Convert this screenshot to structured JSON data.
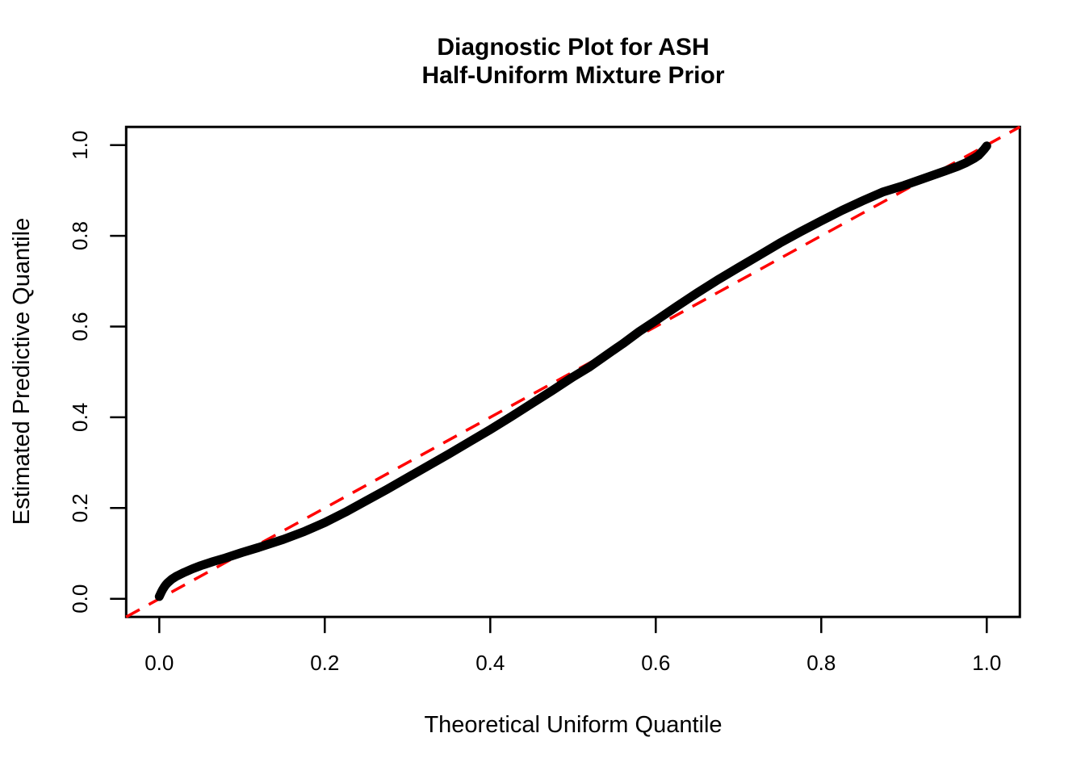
{
  "title": {
    "line1": "Diagnostic Plot for ASH",
    "line2": "Half-Uniform Mixture Prior"
  },
  "axes": {
    "x": {
      "label": "Theoretical Uniform Quantile",
      "tick_values": [
        0.0,
        0.2,
        0.4,
        0.6,
        0.8,
        1.0
      ],
      "tick_labels": [
        "0.0",
        "0.2",
        "0.4",
        "0.6",
        "0.8",
        "1.0"
      ],
      "range": [
        -0.04,
        1.04
      ]
    },
    "y": {
      "label": "Estimated Predictive Quantile",
      "tick_values": [
        0.0,
        0.2,
        0.4,
        0.6,
        0.8,
        1.0
      ],
      "tick_labels": [
        "0.0",
        "0.2",
        "0.4",
        "0.6",
        "0.8",
        "1.0"
      ],
      "range": [
        -0.04,
        1.04
      ]
    }
  },
  "colors": {
    "background": "#FFFFFF",
    "axis": "#000000",
    "curve": "#000000",
    "reference_line": "#FF0000"
  },
  "chart_data": {
    "type": "line",
    "title": "Diagnostic Plot for ASH\nHalf-Uniform Mixture Prior",
    "xlabel": "Theoretical Uniform Quantile",
    "ylabel": "Estimated Predictive Quantile",
    "xlim": [
      -0.04,
      1.04
    ],
    "ylim": [
      -0.04,
      1.04
    ],
    "grid": false,
    "legend": "none",
    "series": [
      {
        "name": "estimated-predictive-quantile-curve",
        "style": "solid-thick",
        "color": "#000000",
        "points": [
          [
            0.0,
            0.005
          ],
          [
            0.002,
            0.013
          ],
          [
            0.004,
            0.02
          ],
          [
            0.006,
            0.026
          ],
          [
            0.008,
            0.031
          ],
          [
            0.01,
            0.035
          ],
          [
            0.015,
            0.043
          ],
          [
            0.02,
            0.049
          ],
          [
            0.03,
            0.058
          ],
          [
            0.04,
            0.066
          ],
          [
            0.05,
            0.073
          ],
          [
            0.065,
            0.082
          ],
          [
            0.08,
            0.09
          ],
          [
            0.1,
            0.102
          ],
          [
            0.12,
            0.113
          ],
          [
            0.15,
            0.131
          ],
          [
            0.175,
            0.148
          ],
          [
            0.2,
            0.168
          ],
          [
            0.225,
            0.191
          ],
          [
            0.25,
            0.216
          ],
          [
            0.275,
            0.241
          ],
          [
            0.3,
            0.267
          ],
          [
            0.325,
            0.293
          ],
          [
            0.35,
            0.319
          ],
          [
            0.375,
            0.346
          ],
          [
            0.4,
            0.373
          ],
          [
            0.425,
            0.401
          ],
          [
            0.45,
            0.43
          ],
          [
            0.475,
            0.459
          ],
          [
            0.5,
            0.489
          ],
          [
            0.52,
            0.511
          ],
          [
            0.545,
            0.543
          ],
          [
            0.56,
            0.562
          ],
          [
            0.58,
            0.589
          ],
          [
            0.6,
            0.613
          ],
          [
            0.625,
            0.644
          ],
          [
            0.65,
            0.674
          ],
          [
            0.675,
            0.703
          ],
          [
            0.7,
            0.73
          ],
          [
            0.725,
            0.757
          ],
          [
            0.75,
            0.784
          ],
          [
            0.775,
            0.809
          ],
          [
            0.8,
            0.833
          ],
          [
            0.825,
            0.856
          ],
          [
            0.85,
            0.877
          ],
          [
            0.875,
            0.897
          ],
          [
            0.9,
            0.911
          ],
          [
            0.925,
            0.927
          ],
          [
            0.95,
            0.943
          ],
          [
            0.965,
            0.953
          ],
          [
            0.975,
            0.961
          ],
          [
            0.985,
            0.971
          ],
          [
            0.99,
            0.977
          ],
          [
            0.994,
            0.985
          ],
          [
            0.997,
            0.991
          ],
          [
            1.0,
            0.998
          ]
        ]
      },
      {
        "name": "identity-reference-line",
        "style": "dashed",
        "color": "#FF0000",
        "points": [
          [
            -0.04,
            -0.04
          ],
          [
            1.04,
            1.04
          ]
        ]
      }
    ]
  }
}
